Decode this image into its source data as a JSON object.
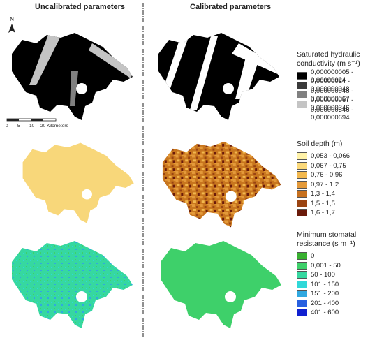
{
  "headers": {
    "uncalibrated": "Uncalibrated parameters",
    "calibrated": "Calibrated parameters"
  },
  "north": "N",
  "scale_bar": {
    "labels": [
      "0",
      "5",
      "10",
      "20 Kilometers"
    ]
  },
  "legends": [
    {
      "title": "Saturated hydraulic conductivity (m s⁻¹)",
      "items": [
        {
          "label": "0,000000005 - 0,00000024",
          "color": "#000000"
        },
        {
          "label": "0,00000024 - 0,000000048",
          "color": "#3a3a3a"
        },
        {
          "label": "0,000000048 - 0,000000067",
          "color": "#808080"
        },
        {
          "label": "0,000000067 - 0,000000346",
          "color": "#c4c4c4"
        },
        {
          "label": "0,000000346 - 0,000000694",
          "color": "#ffffff"
        }
      ]
    },
    {
      "title": "Soil depth (m)",
      "items": [
        {
          "label": "0,053 - 0,066",
          "color": "#fff2a8"
        },
        {
          "label": "0,067 - 0,75",
          "color": "#fbd97a"
        },
        {
          "label": "0,76 - 0,96",
          "color": "#f2b84e"
        },
        {
          "label": "0,97 - 1,2",
          "color": "#e49a3a"
        },
        {
          "label": "1,3 - 1,4",
          "color": "#c6701e"
        },
        {
          "label": "1,5 - 1,5",
          "color": "#9a4412"
        },
        {
          "label": "1,6 - 1,7",
          "color": "#6a1a0a"
        }
      ]
    },
    {
      "title": "Minimum stomatal resistance (s m⁻¹)",
      "items": [
        {
          "label": "0",
          "color": "#38b030"
        },
        {
          "label": "0,001 - 50",
          "color": "#3ed06a"
        },
        {
          "label": "50 - 100",
          "color": "#36d8a0"
        },
        {
          "label": "101 - 150",
          "color": "#30d8d8"
        },
        {
          "label": "151 - 200",
          "color": "#30a8e0"
        },
        {
          "label": "201 - 400",
          "color": "#2860e0"
        },
        {
          "label": "401 - 600",
          "color": "#1020d0"
        }
      ]
    }
  ]
}
